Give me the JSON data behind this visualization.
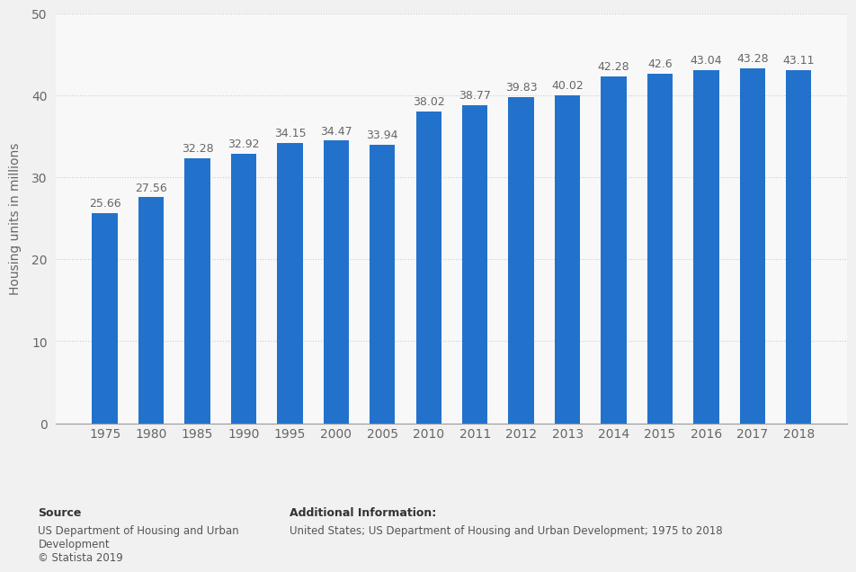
{
  "categories": [
    "1975",
    "1980",
    "1985",
    "1990",
    "1995",
    "2000",
    "2005",
    "2010",
    "2011",
    "2012",
    "2013",
    "2014",
    "2015",
    "2016",
    "2017",
    "2018"
  ],
  "values": [
    25.66,
    27.56,
    32.28,
    32.92,
    34.15,
    34.47,
    33.94,
    38.02,
    38.77,
    39.83,
    40.02,
    42.28,
    42.6,
    43.04,
    43.28,
    43.11
  ],
  "bar_color": "#2272CC",
  "ylabel": "Housing units in millions",
  "ylim": [
    0,
    50
  ],
  "yticks": [
    0,
    10,
    20,
    30,
    40,
    50
  ],
  "background_color": "#F1F1F1",
  "plot_background": "#F8F8F8",
  "grid_color": "#CCCCCC",
  "label_fontsize": 10,
  "tick_fontsize": 10,
  "bar_label_fontsize": 9,
  "bar_label_color": "#666666",
  "source_text_bold": "Source",
  "source_text_body": "US Department of Housing and Urban\nDevelopment\n© Statista 2019",
  "additional_text_bold": "Additional Information:",
  "additional_text_body": "United States; US Department of Housing and Urban Development; 1975 to 2018"
}
